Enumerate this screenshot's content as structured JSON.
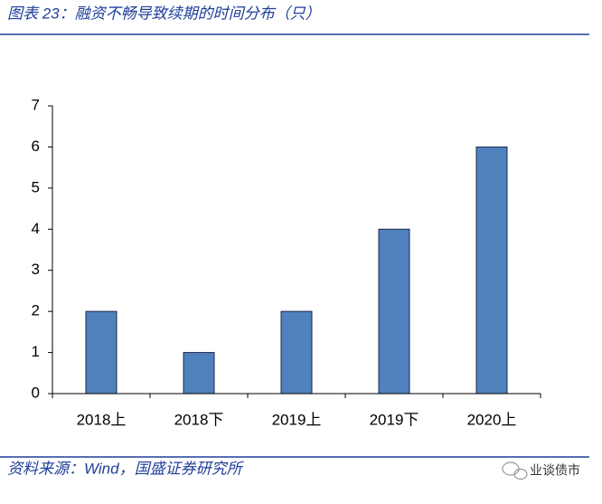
{
  "title": "图表 23：融资不畅导致续期的时间分布（只）",
  "source": "资料来源：Wind，国盛证券研究所",
  "watermark": "业谈债市",
  "chart_data": {
    "type": "bar",
    "categories": [
      "2018上",
      "2018下",
      "2019上",
      "2019下",
      "2020上"
    ],
    "values": [
      2,
      1,
      2,
      4,
      6
    ],
    "color": "#4f81bd",
    "ylim": [
      0,
      7
    ],
    "yticks": [
      0,
      1,
      2,
      3,
      4,
      5,
      6,
      7
    ],
    "grid": false
  }
}
